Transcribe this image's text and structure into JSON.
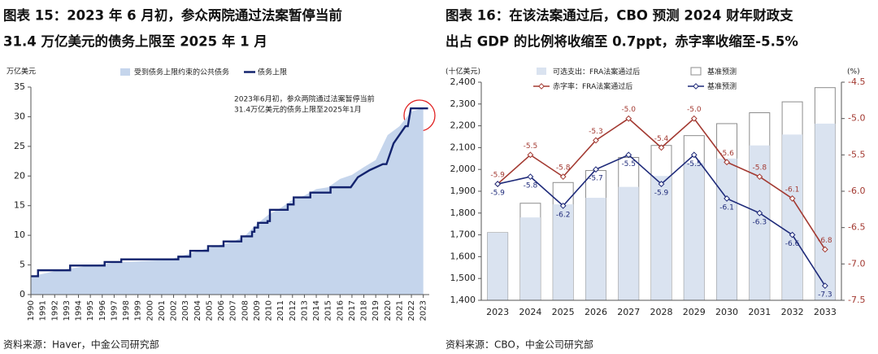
{
  "chart_data": [
    {
      "type": "area",
      "title": [
        "图表 15：2023 年 6 月初，参众两院通过法案暂停当前",
        "31.4 万亿美元的债务上限至 2025 年 1 月"
      ],
      "y_label": "万亿美元",
      "annotation": [
        "2023年6月初，参众两院通过法案暂停当前",
        "31.4万亿美元的债务上限至2025年1月"
      ],
      "source": "资料来源：Haver，中金公司研究部",
      "xlim": [
        1990,
        2023.5
      ],
      "xticks": [
        1990,
        1991,
        1992,
        1993,
        1994,
        1995,
        1996,
        1997,
        1998,
        1999,
        2000,
        2001,
        2002,
        2003,
        2004,
        2005,
        2006,
        2007,
        2008,
        2009,
        2010,
        2011,
        2012,
        2013,
        2014,
        2015,
        2016,
        2017,
        2018,
        2019,
        2020,
        2021,
        2022,
        2023
      ],
      "ylim": [
        0,
        35
      ],
      "yticks": [
        0,
        5,
        10,
        15,
        20,
        25,
        30,
        35
      ],
      "legend": "top",
      "series": [
        {
          "name": "受到债务上限约束的公共债务",
          "kind": "area",
          "color": "#c5d5ec",
          "x": [
            1990,
            1991,
            1992,
            1993,
            1994,
            1995,
            1996,
            1997,
            1998,
            1999,
            2000,
            2001,
            2002,
            2003,
            2004,
            2005,
            2006,
            2007,
            2008,
            2009,
            2010,
            2011,
            2012,
            2013,
            2014,
            2015,
            2016,
            2017,
            2018,
            2019,
            2020,
            2021,
            2022,
            2023
          ],
          "values": [
            3.1,
            3.5,
            3.95,
            4.3,
            4.6,
            4.9,
            5.1,
            5.4,
            5.5,
            5.6,
            5.7,
            5.8,
            6.1,
            6.7,
            7.3,
            7.9,
            8.4,
            8.9,
            9.9,
            11.9,
            13.5,
            14.6,
            16.0,
            16.7,
            17.8,
            18.1,
            19.5,
            20.2,
            21.5,
            22.7,
            26.9,
            28.4,
            30.9,
            31.4
          ]
        },
        {
          "name": "债务上限",
          "kind": "line",
          "color": "#13236e",
          "x": [
            1990,
            1990.6,
            1990.6,
            1993.3,
            1993.3,
            1996.2,
            1996.2,
            1997.6,
            1997.6,
            2002.4,
            2002.4,
            2003.4,
            2003.4,
            2004.9,
            2004.9,
            2006.2,
            2006.2,
            2007.7,
            2007.7,
            2008.6,
            2008.6,
            2008.8,
            2008.8,
            2009.1,
            2009.1,
            2009.9,
            2009.9,
            2010.1,
            2010.1,
            2011.6,
            2011.6,
            2012.1,
            2012.1,
            2013.5,
            2013.5,
            2015.2,
            2015.2,
            2016.9,
            2017.5,
            2018.5,
            2019.6,
            2019.9,
            2020.5,
            2021.5,
            2021.7,
            2021.95,
            2023.4
          ],
          "values": [
            3.1,
            3.1,
            4.1,
            4.1,
            4.9,
            4.9,
            5.5,
            5.5,
            5.95,
            5.95,
            6.4,
            6.4,
            7.38,
            7.38,
            8.18,
            8.18,
            8.97,
            8.97,
            9.82,
            9.82,
            10.6,
            10.6,
            11.3,
            11.3,
            12.1,
            12.1,
            12.4,
            12.4,
            14.3,
            14.3,
            15.2,
            15.2,
            16.4,
            16.4,
            17.2,
            17.2,
            18.1,
            18.1,
            19.8,
            21.0,
            22.0,
            22.0,
            25.5,
            28.4,
            28.4,
            31.4,
            31.4
          ]
        }
      ]
    },
    {
      "type": "bar",
      "title": [
        "图表 16：在该法案通过后，CBO 预测 2024 财年财政支",
        "出占 GDP 的比例将收缩至 0.7ppt，赤字率收缩至-5.5%"
      ],
      "y_label": "(十亿美元)",
      "y2_label": "(%)",
      "source": "资料来源：CBO，中金公司研究部",
      "categories": [
        "2023",
        "2024",
        "2025",
        "2026",
        "2027",
        "2028",
        "2029",
        "2030",
        "2031",
        "2032",
        "2033"
      ],
      "ylim": [
        1400,
        2400
      ],
      "yticks": [
        {
          "value": 1400,
          "label": "1,400"
        },
        {
          "value": 1500,
          "label": "1,500"
        },
        {
          "value": 1600,
          "label": "1,600"
        },
        {
          "value": 1700,
          "label": "1,700"
        },
        {
          "value": 1800,
          "label": "1,800"
        },
        {
          "value": 1900,
          "label": "1,900"
        },
        {
          "value": 2000,
          "label": "2,000"
        },
        {
          "value": 2100,
          "label": "2,100"
        },
        {
          "value": 2200,
          "label": "2,200"
        },
        {
          "value": 2300,
          "label": "2,300"
        },
        {
          "value": 2400,
          "label": "2,400"
        }
      ],
      "y2lim": [
        -7.5,
        -4.5
      ],
      "y2ticks": [
        -7.5,
        {
          "value": -7,
          "label": "-7.0"
        },
        -6.5,
        {
          "value": -6,
          "label": "-6.0"
        },
        -5.5,
        {
          "value": -5,
          "label": "-5.0"
        },
        -4.5
      ],
      "legend": "top",
      "series": [
        {
          "name": "可选支出：FRA法案通过后",
          "kind": "bar",
          "color": "#dae3f0",
          "values": [
            1710,
            1780,
            1840,
            1870,
            1920,
            1970,
            2030,
            2050,
            2110,
            2160,
            2210
          ]
        },
        {
          "name": "基准预测",
          "kind": "bar-outline",
          "color": "#8c8c8c",
          "values": [
            1710,
            1845,
            1940,
            1995,
            2055,
            2110,
            2155,
            2210,
            2260,
            2310,
            2375
          ]
        },
        {
          "name": "赤字率：FRA法案通过后",
          "kind": "line",
          "axis": "y2",
          "color": "#a33a32",
          "values": [
            -5.9,
            -5.5,
            -5.8,
            -5.3,
            -5,
            -5.4,
            -5,
            -5.6,
            -5.8,
            -6.1,
            -6.8
          ],
          "value_labels": [
            "-5.9",
            "-5.5",
            "-5.8",
            "-5.3",
            "-5.0",
            "-5.4",
            "-5.0",
            "-5.6",
            "-5.8",
            "-6.1",
            "-6.8"
          ]
        },
        {
          "name": "基准预测",
          "kind": "line",
          "axis": "y2",
          "color": "#1f2b7a",
          "values": [
            -5.9,
            -5.8,
            -6.2,
            -5.7,
            -5.5,
            -5.9,
            -5.5,
            -6.1,
            -6.3,
            -6.6,
            -7.3
          ]
        }
      ]
    }
  ]
}
